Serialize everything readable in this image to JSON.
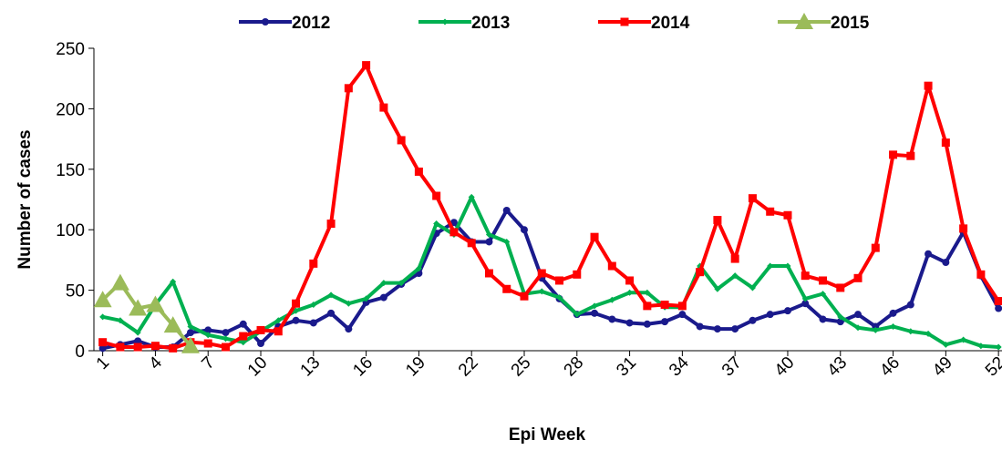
{
  "chart_data": {
    "type": "line",
    "x_label": "Epi Week",
    "y_label": "Number of cases",
    "x": [
      1,
      2,
      3,
      4,
      5,
      6,
      7,
      8,
      9,
      10,
      11,
      12,
      13,
      14,
      15,
      16,
      17,
      18,
      19,
      20,
      21,
      22,
      23,
      24,
      25,
      26,
      27,
      28,
      29,
      30,
      31,
      32,
      33,
      34,
      35,
      36,
      37,
      38,
      39,
      40,
      41,
      42,
      43,
      44,
      45,
      46,
      47,
      48,
      49,
      50,
      51,
      52
    ],
    "xlim": [
      0.5,
      52.2
    ],
    "xticks": [
      1,
      4,
      7,
      10,
      13,
      16,
      19,
      22,
      25,
      28,
      31,
      34,
      37,
      40,
      43,
      46,
      49,
      52
    ],
    "ylim": [
      0,
      250
    ],
    "yticks": [
      0,
      50,
      100,
      150,
      200,
      250
    ],
    "grid": false,
    "legend": "top",
    "series": [
      {
        "name": "2012",
        "color": "#1a1a8c",
        "marker": "circle",
        "values": [
          2,
          5,
          8,
          3,
          3,
          15,
          17,
          15,
          22,
          6,
          20,
          25,
          23,
          31,
          18,
          40,
          44,
          55,
          64,
          97,
          106,
          90,
          90,
          116,
          100,
          60,
          43,
          30,
          31,
          26,
          23,
          22,
          24,
          30,
          20,
          18,
          18,
          25,
          30,
          33,
          39,
          26,
          24,
          30,
          20,
          31,
          38,
          80,
          73,
          98,
          62,
          35
        ]
      },
      {
        "name": "2013",
        "color": "#00b050",
        "marker": "diamond",
        "values": [
          28,
          25,
          15,
          38,
          57,
          20,
          13,
          10,
          7,
          16,
          25,
          33,
          38,
          46,
          39,
          43,
          56,
          56,
          68,
          105,
          96,
          127,
          96,
          90,
          47,
          49,
          44,
          30,
          37,
          42,
          48,
          48,
          36,
          36,
          70,
          51,
          62,
          52,
          70,
          70,
          43,
          47,
          28,
          19,
          17,
          20,
          16,
          14,
          5,
          9,
          4,
          3
        ]
      },
      {
        "name": "2014",
        "color": "#ff0000",
        "marker": "square",
        "values": [
          7,
          3,
          3,
          4,
          2,
          7,
          6,
          3,
          12,
          17,
          16,
          39,
          72,
          105,
          217,
          236,
          201,
          174,
          148,
          128,
          98,
          89,
          64,
          51,
          45,
          64,
          58,
          63,
          94,
          70,
          58,
          37,
          38,
          37,
          65,
          108,
          76,
          126,
          115,
          112,
          62,
          58,
          52,
          60,
          85,
          162,
          161,
          219,
          172,
          101,
          63,
          41
        ]
      },
      {
        "name": "2015",
        "color": "#9bbb59",
        "marker": "triangle",
        "values": [
          42,
          56,
          35,
          38,
          21,
          4,
          null,
          null,
          null,
          null,
          null,
          null,
          null,
          null,
          null,
          null,
          null,
          null,
          null,
          null,
          null,
          null,
          null,
          null,
          null,
          null,
          null,
          null,
          null,
          null,
          null,
          null,
          null,
          null,
          null,
          null,
          null,
          null,
          null,
          null,
          null,
          null,
          null,
          null,
          null,
          null,
          null,
          null,
          null,
          null,
          null,
          null
        ]
      }
    ]
  }
}
